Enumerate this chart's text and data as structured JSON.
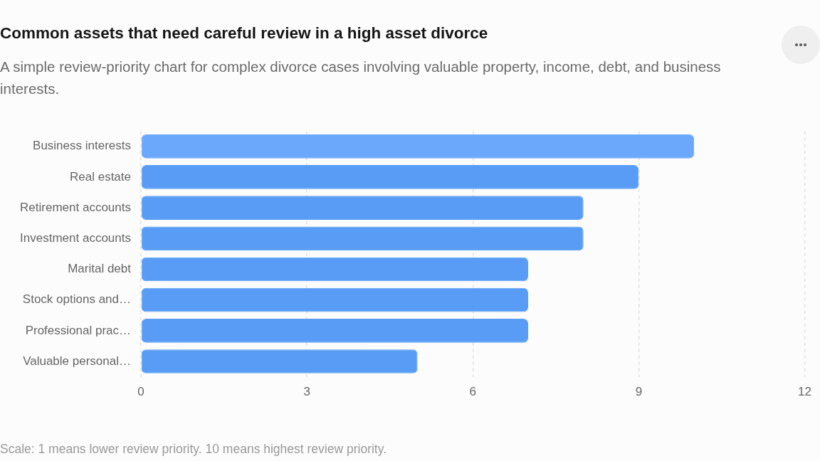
{
  "chart_data": {
    "type": "bar",
    "orientation": "horizontal",
    "title": "Common assets that need careful review in a high asset divorce",
    "subtitle": "A simple review-priority chart for complex divorce cases involving valuable property, income, debt, and business interests.",
    "categories": [
      "Business interests",
      "Real estate",
      "Retirement accounts",
      "Investment accounts",
      "Marital debt",
      "Stock options and…",
      "Professional prac…",
      "Valuable personal…"
    ],
    "values": [
      10,
      9,
      8,
      8,
      7,
      7,
      7,
      5
    ],
    "colors": [
      "#6ba7fa",
      "#589cf6",
      "#589cf6",
      "#589cf6",
      "#589cf6",
      "#589cf6",
      "#589cf6",
      "#589cf6"
    ],
    "xlim": [
      0,
      12
    ],
    "xticks": [
      0,
      3,
      6,
      9,
      12
    ],
    "grid": "x",
    "legend": false,
    "annotations": [
      "Scale: 1 means lower review priority. 10 means highest review priority."
    ]
  }
}
